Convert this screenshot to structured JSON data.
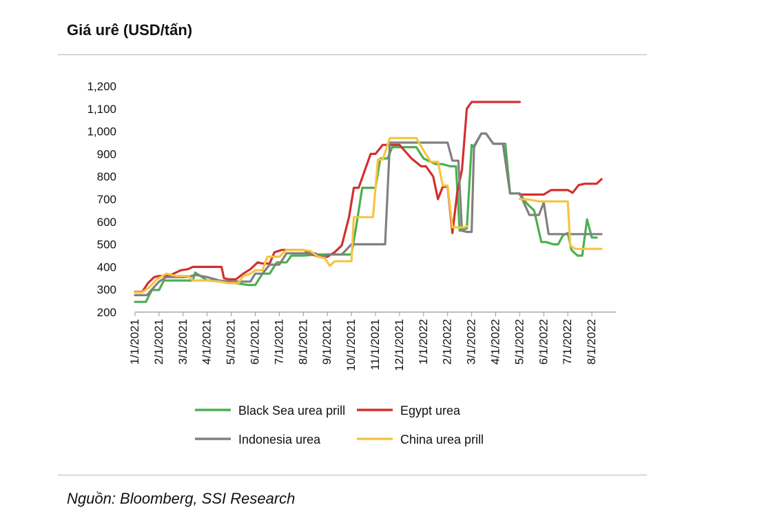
{
  "header": {
    "title": "Giá urê (USD/tấn)"
  },
  "footer": {
    "source": "Nguồn: Bloomberg, SSI Research"
  },
  "colors": {
    "black_sea": "#4CAF50",
    "egypt": "#D32F2F",
    "indonesia": "#808080",
    "china": "#F5C542"
  },
  "chart_data": {
    "type": "line",
    "title": "Giá urê (USD/tấn)",
    "xlabel": "",
    "ylabel": "",
    "ylim": [
      200,
      1200
    ],
    "yticks": [
      200,
      300,
      400,
      500,
      600,
      700,
      800,
      900,
      1000,
      1100,
      1200
    ],
    "ytick_labels": [
      "200",
      "300",
      "400",
      "500",
      "600",
      "700",
      "800",
      "900",
      "1,000",
      "1,100",
      "1,200"
    ],
    "xlim_months": [
      0,
      20
    ],
    "xticks": [
      0,
      1,
      2,
      3,
      4,
      5,
      6,
      7,
      8,
      9,
      10,
      11,
      12,
      13,
      14,
      15,
      16,
      17,
      18,
      19
    ],
    "xtick_labels": [
      "1/1/2021",
      "2/1/2021",
      "3/1/2021",
      "4/1/2021",
      "5/1/2021",
      "6/1/2021",
      "7/1/2021",
      "8/1/2021",
      "9/1/2021",
      "10/1/2021",
      "11/1/2021",
      "12/1/2021",
      "1/1/2022",
      "2/1/2022",
      "3/1/2022",
      "4/1/2022",
      "5/1/2022",
      "6/1/2022",
      "7/1/2022",
      "8/1/2022"
    ],
    "grid": false,
    "legend_position": "bottom",
    "series": [
      {
        "name": "Black Sea urea prill",
        "color": "#4CAF50",
        "points": [
          [
            0,
            245
          ],
          [
            0.45,
            245
          ],
          [
            0.7,
            298
          ],
          [
            1,
            298
          ],
          [
            1.2,
            340
          ],
          [
            2,
            340
          ],
          [
            2.4,
            340
          ],
          [
            2.5,
            375
          ],
          [
            3,
            340
          ],
          [
            3.4,
            340
          ],
          [
            4,
            330
          ],
          [
            4.4,
            325
          ],
          [
            4.7,
            320
          ],
          [
            5,
            320
          ],
          [
            5.3,
            370
          ],
          [
            5.6,
            370
          ],
          [
            5.9,
            420
          ],
          [
            6.3,
            420
          ],
          [
            6.5,
            450
          ],
          [
            7,
            450
          ],
          [
            7.6,
            455
          ],
          [
            8,
            455
          ],
          [
            8.3,
            455
          ],
          [
            8.6,
            455
          ],
          [
            9,
            455
          ],
          [
            9.2,
            580
          ],
          [
            9.45,
            750
          ],
          [
            10,
            750
          ],
          [
            10.2,
            880
          ],
          [
            10.5,
            880
          ],
          [
            10.7,
            930
          ],
          [
            11.2,
            930
          ],
          [
            11.7,
            930
          ],
          [
            12,
            880
          ],
          [
            12.5,
            855
          ],
          [
            12.8,
            855
          ],
          [
            13.1,
            845
          ],
          [
            13.35,
            845
          ],
          [
            13.5,
            560
          ],
          [
            13.8,
            570
          ],
          [
            14,
            940
          ],
          [
            14.1,
            930
          ],
          [
            14.4,
            990
          ],
          [
            14.6,
            990
          ],
          [
            14.9,
            945
          ],
          [
            15.2,
            945
          ],
          [
            15.4,
            945
          ],
          [
            15.6,
            725
          ],
          [
            16,
            725
          ],
          [
            16.3,
            680
          ],
          [
            16.6,
            650
          ],
          [
            16.9,
            510
          ],
          [
            17.1,
            510
          ],
          [
            17.4,
            500
          ],
          [
            17.6,
            500
          ],
          [
            17.8,
            540
          ],
          [
            18,
            550
          ],
          [
            18.15,
            475
          ],
          [
            18.4,
            450
          ],
          [
            18.6,
            450
          ],
          [
            18.8,
            610
          ],
          [
            19.0,
            530
          ],
          [
            19.2,
            530
          ]
        ]
      },
      {
        "name": "Egypt urea",
        "color": "#D32F2F",
        "points": [
          [
            0,
            290
          ],
          [
            0.3,
            290
          ],
          [
            0.55,
            330
          ],
          [
            0.8,
            355
          ],
          [
            1,
            360
          ],
          [
            1.4,
            360
          ],
          [
            1.9,
            385
          ],
          [
            2.2,
            390
          ],
          [
            2.4,
            400
          ],
          [
            3,
            400
          ],
          [
            3.6,
            400
          ],
          [
            3.7,
            350
          ],
          [
            3.9,
            345
          ],
          [
            4.2,
            345
          ],
          [
            4.5,
            370
          ],
          [
            4.8,
            390
          ],
          [
            5.1,
            420
          ],
          [
            5.3,
            415
          ],
          [
            5.6,
            415
          ],
          [
            5.8,
            465
          ],
          [
            6.1,
            475
          ],
          [
            6.6,
            475
          ],
          [
            7,
            475
          ],
          [
            7.3,
            460
          ],
          [
            7.6,
            445
          ],
          [
            8,
            445
          ],
          [
            8.3,
            465
          ],
          [
            8.6,
            495
          ],
          [
            8.9,
            620
          ],
          [
            9.1,
            750
          ],
          [
            9.3,
            750
          ],
          [
            9.6,
            840
          ],
          [
            9.8,
            900
          ],
          [
            10,
            900
          ],
          [
            10.3,
            940
          ],
          [
            10.6,
            940
          ],
          [
            11,
            940
          ],
          [
            11.5,
            880
          ],
          [
            11.9,
            845
          ],
          [
            12.1,
            845
          ],
          [
            12.4,
            800
          ],
          [
            12.6,
            700
          ],
          [
            12.8,
            755
          ],
          [
            13.0,
            755
          ],
          [
            13.2,
            550
          ],
          [
            13.4,
            730
          ],
          [
            13.6,
            830
          ],
          [
            13.8,
            1100
          ],
          [
            14,
            1130
          ],
          [
            14.3,
            1130
          ],
          [
            15,
            1130
          ],
          [
            15.5,
            1130
          ],
          [
            16.0,
            1130
          ]
        ]
      },
      {
        "name": "Egypt urea",
        "color": "#D32F2F",
        "points": [
          [
            16.0,
            720
          ],
          [
            16.4,
            720
          ],
          [
            16.8,
            720
          ],
          [
            17.0,
            720
          ],
          [
            17.3,
            740
          ],
          [
            17.6,
            740
          ],
          [
            18.0,
            740
          ],
          [
            18.2,
            728
          ],
          [
            18.45,
            762
          ],
          [
            18.7,
            768
          ],
          [
            19.0,
            768
          ],
          [
            19.2,
            768
          ],
          [
            19.4,
            788
          ]
        ]
      },
      {
        "name": "Indonesia urea",
        "color": "#808080",
        "points": [
          [
            0,
            275
          ],
          [
            0.5,
            275
          ],
          [
            0.7,
            300
          ],
          [
            1,
            335
          ],
          [
            1.3,
            355
          ],
          [
            2,
            355
          ],
          [
            2.3,
            358
          ],
          [
            2.5,
            365
          ],
          [
            3,
            355
          ],
          [
            3.5,
            340
          ],
          [
            4,
            335
          ],
          [
            4.4,
            335
          ],
          [
            4.8,
            335
          ],
          [
            5,
            370
          ],
          [
            5.3,
            370
          ],
          [
            5.6,
            410
          ],
          [
            6,
            410
          ],
          [
            6.3,
            460
          ],
          [
            7,
            460
          ],
          [
            7.5,
            460
          ],
          [
            7.8,
            440
          ],
          [
            8,
            455
          ],
          [
            8.3,
            455
          ],
          [
            8.6,
            455
          ],
          [
            9,
            500
          ],
          [
            9.2,
            500
          ],
          [
            10,
            500
          ],
          [
            10.4,
            500
          ],
          [
            10.6,
            950
          ],
          [
            11,
            950
          ],
          [
            11.5,
            950
          ],
          [
            12.4,
            950
          ],
          [
            13.0,
            950
          ],
          [
            13.2,
            870
          ],
          [
            13.45,
            870
          ],
          [
            13.6,
            560
          ],
          [
            13.8,
            555
          ],
          [
            14,
            555
          ],
          [
            14.1,
            935
          ],
          [
            14.4,
            990
          ],
          [
            14.6,
            990
          ],
          [
            14.9,
            945
          ],
          [
            15.3,
            945
          ],
          [
            15.6,
            725
          ],
          [
            16,
            725
          ],
          [
            16.4,
            630
          ],
          [
            16.8,
            630
          ],
          [
            17,
            685
          ],
          [
            17.2,
            545
          ],
          [
            17.6,
            545
          ],
          [
            18,
            545
          ],
          [
            18.6,
            545
          ],
          [
            19.0,
            545
          ],
          [
            19.4,
            545
          ]
        ]
      },
      {
        "name": "China urea prill",
        "color": "#F5C542",
        "points": [
          [
            0,
            288
          ],
          [
            0.3,
            288
          ],
          [
            0.6,
            310
          ],
          [
            0.9,
            345
          ],
          [
            1.3,
            370
          ],
          [
            1.7,
            360
          ],
          [
            2.2,
            360
          ],
          [
            2.4,
            340
          ],
          [
            3,
            340
          ],
          [
            3.5,
            335
          ],
          [
            3.9,
            328
          ],
          [
            4.3,
            328
          ],
          [
            4.5,
            360
          ],
          [
            4.8,
            370
          ],
          [
            5,
            385
          ],
          [
            5.3,
            385
          ],
          [
            5.5,
            445
          ],
          [
            6,
            445
          ],
          [
            6.3,
            475
          ],
          [
            7,
            475
          ],
          [
            7.3,
            470
          ],
          [
            7.6,
            445
          ],
          [
            7.9,
            438
          ],
          [
            8.1,
            405
          ],
          [
            8.3,
            425
          ],
          [
            9,
            425
          ],
          [
            9.1,
            620
          ],
          [
            9.3,
            620
          ],
          [
            9.9,
            620
          ],
          [
            10.1,
            875
          ],
          [
            10.3,
            875
          ],
          [
            10.6,
            970
          ],
          [
            11,
            970
          ],
          [
            11.7,
            970
          ],
          [
            12.0,
            915
          ],
          [
            12.3,
            865
          ],
          [
            12.6,
            865
          ],
          [
            12.8,
            760
          ],
          [
            13,
            760
          ],
          [
            13.2,
            575
          ],
          [
            13.5,
            575
          ],
          [
            13.7,
            575
          ],
          [
            13.8,
            580
          ]
        ]
      },
      {
        "name": "China urea prill",
        "color": "#F5C542",
        "points": [
          [
            16.0,
            700
          ],
          [
            16.4,
            698
          ],
          [
            16.8,
            690
          ],
          [
            17,
            690
          ],
          [
            17.5,
            690
          ],
          [
            17.9,
            690
          ],
          [
            18.0,
            690
          ],
          [
            18.1,
            495
          ],
          [
            18.3,
            480
          ],
          [
            18.6,
            480
          ],
          [
            19.0,
            480
          ],
          [
            19.4,
            480
          ]
        ]
      }
    ],
    "legend": [
      {
        "name": "Black Sea urea prill",
        "color": "#4CAF50"
      },
      {
        "name": "Egypt urea",
        "color": "#D32F2F"
      },
      {
        "name": "Indonesia urea",
        "color": "#808080"
      },
      {
        "name": "China urea prill",
        "color": "#F5C542"
      }
    ]
  }
}
